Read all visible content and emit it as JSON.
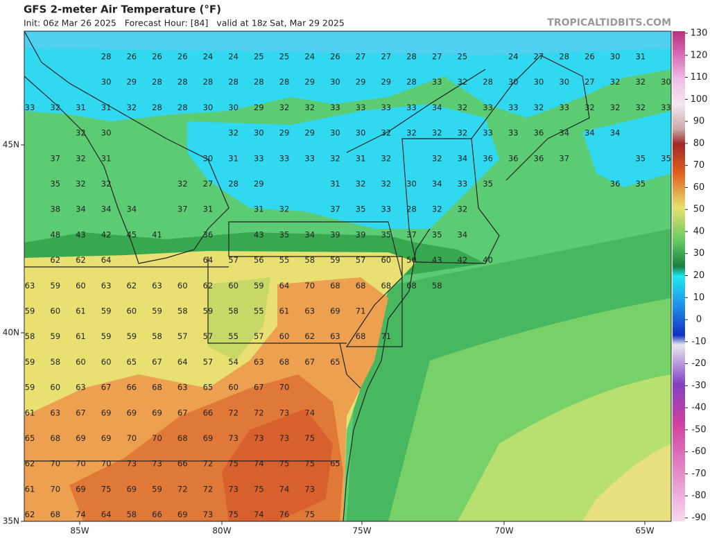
{
  "header": {
    "title": "GFS 2-meter Air Temperature (°F)",
    "subtitle": "Init: 06z Mar 26 2025   Forecast Hour: [84]   valid at 18z Sat, Mar 29 2025",
    "credit": "TROPICALTIDBITS.COM"
  },
  "map": {
    "lon_labels": [
      "85W",
      "80W",
      "75W",
      "70W",
      "65W"
    ],
    "lat_labels": [
      "45N",
      "40N",
      "35N"
    ],
    "station_rows": [
      [
        null,
        null,
        null,
        28,
        26,
        26,
        26,
        24,
        24,
        25,
        25,
        24,
        26,
        27,
        27,
        28,
        27,
        25,
        null,
        24,
        27,
        28,
        26,
        30,
        31,
        null
      ],
      [
        null,
        null,
        null,
        30,
        29,
        28,
        28,
        28,
        28,
        28,
        28,
        29,
        30,
        29,
        29,
        28,
        33,
        32,
        28,
        30,
        30,
        30,
        27,
        32,
        32,
        30
      ],
      [
        33,
        32,
        31,
        31,
        32,
        28,
        28,
        30,
        30,
        29,
        32,
        32,
        33,
        33,
        33,
        33,
        34,
        32,
        33,
        33,
        32,
        33,
        32,
        32,
        32,
        33
      ],
      [
        null,
        null,
        32,
        30,
        null,
        null,
        null,
        null,
        32,
        30,
        29,
        29,
        30,
        30,
        32,
        32,
        32,
        32,
        33,
        33,
        36,
        34,
        34,
        34,
        null,
        null
      ],
      [
        null,
        37,
        32,
        31,
        null,
        null,
        null,
        30,
        31,
        33,
        33,
        33,
        32,
        31,
        32,
        null,
        32,
        34,
        36,
        36,
        36,
        37,
        null,
        null,
        35,
        35
      ],
      [
        null,
        35,
        32,
        32,
        null,
        null,
        32,
        27,
        28,
        29,
        null,
        null,
        31,
        32,
        32,
        30,
        34,
        33,
        35,
        null,
        null,
        null,
        null,
        36,
        35,
        null
      ],
      [
        null,
        38,
        34,
        34,
        34,
        null,
        37,
        31,
        null,
        31,
        32,
        null,
        37,
        35,
        33,
        28,
        32,
        32
      ],
      [
        null,
        48,
        43,
        42,
        45,
        41,
        null,
        36,
        null,
        43,
        35,
        34,
        39,
        39,
        35,
        37,
        35,
        34
      ],
      [
        null,
        62,
        62,
        64,
        null,
        null,
        null,
        64,
        57,
        56,
        55,
        58,
        59,
        57,
        60,
        56,
        43,
        42,
        40
      ],
      [
        63,
        59,
        60,
        63,
        62,
        63,
        60,
        62,
        60,
        59,
        64,
        70,
        68,
        68,
        68,
        68,
        58
      ],
      [
        59,
        60,
        61,
        59,
        60,
        59,
        58,
        59,
        58,
        55,
        61,
        63,
        69,
        71
      ],
      [
        58,
        59,
        61,
        59,
        59,
        58,
        57,
        57,
        55,
        57,
        60,
        62,
        63,
        68,
        71
      ],
      [
        59,
        58,
        60,
        60,
        65,
        67,
        64,
        57,
        54,
        63,
        68,
        67,
        65
      ],
      [
        59,
        60,
        63,
        67,
        66,
        68,
        63,
        65,
        60,
        67,
        70
      ],
      [
        61,
        63,
        67,
        69,
        69,
        69,
        67,
        66,
        72,
        72,
        73,
        74
      ],
      [
        65,
        68,
        69,
        69,
        70,
        70,
        68,
        69,
        73,
        73,
        73,
        75
      ],
      [
        62,
        70,
        70,
        70,
        73,
        73,
        66,
        72,
        75,
        74,
        75,
        75,
        65
      ],
      [
        61,
        70,
        69,
        75,
        69,
        59,
        72,
        72,
        73,
        75,
        74,
        73
      ],
      [
        62,
        68,
        74,
        64,
        58,
        66,
        69,
        73,
        75,
        74,
        76,
        75
      ]
    ]
  },
  "colorbar": {
    "ticks": [
      130,
      120,
      110,
      100,
      90,
      80,
      70,
      60,
      50,
      40,
      30,
      20,
      10,
      0,
      -10,
      -20,
      -30,
      -40,
      -50,
      -60,
      -70,
      -80,
      -90
    ]
  }
}
